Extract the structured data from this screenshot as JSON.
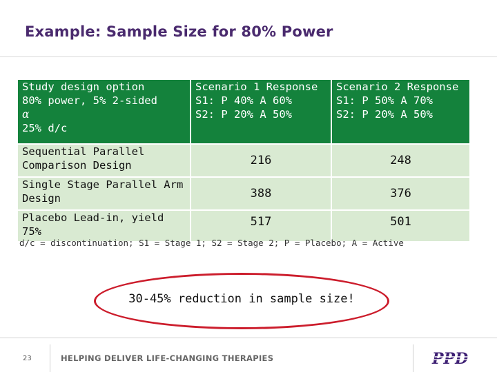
{
  "slide": {
    "title": "Example: Sample Size for 80% Power"
  },
  "table": {
    "header": {
      "design_lines": [
        "Study design option",
        "80% power, 5% 2-sided",
        "α",
        "25% d/c"
      ],
      "scenario1_lines": [
        "Scenario 1 Response",
        "S1: P 40% A 60%",
        "S2: P 20% A 50%"
      ],
      "scenario2_lines": [
        "Scenario 2 Response",
        "S1: P 50% A 70%",
        "S2: P 20% A 50%"
      ]
    },
    "rows": [
      {
        "design_lines": [
          "Sequential Parallel",
          "Comparison Design"
        ],
        "scenario1": "216",
        "scenario2": "248"
      },
      {
        "design_lines": [
          "Single Stage Parallel Arm",
          "Design"
        ],
        "scenario1": "388",
        "scenario2": "376"
      },
      {
        "design_lines": [
          "Placebo Lead-in, yield",
          "75%"
        ],
        "scenario1": "517",
        "scenario2": "501"
      }
    ],
    "colors": {
      "header_bg": "#14823c",
      "row_bg": "#d9ead2"
    }
  },
  "footnote": "d/c = discontinuation; S1 = Stage 1; S2 = Stage 2; P = Placebo; A = Active",
  "callout": {
    "text": "30-45% reduction in sample size!",
    "border_color": "#cc1d2c"
  },
  "footer": {
    "page_number": "23",
    "tagline": "HELPING DELIVER LIFE-CHANGING THERAPIES",
    "logo_text": "PPD",
    "logo_color": "#3d1f73"
  }
}
